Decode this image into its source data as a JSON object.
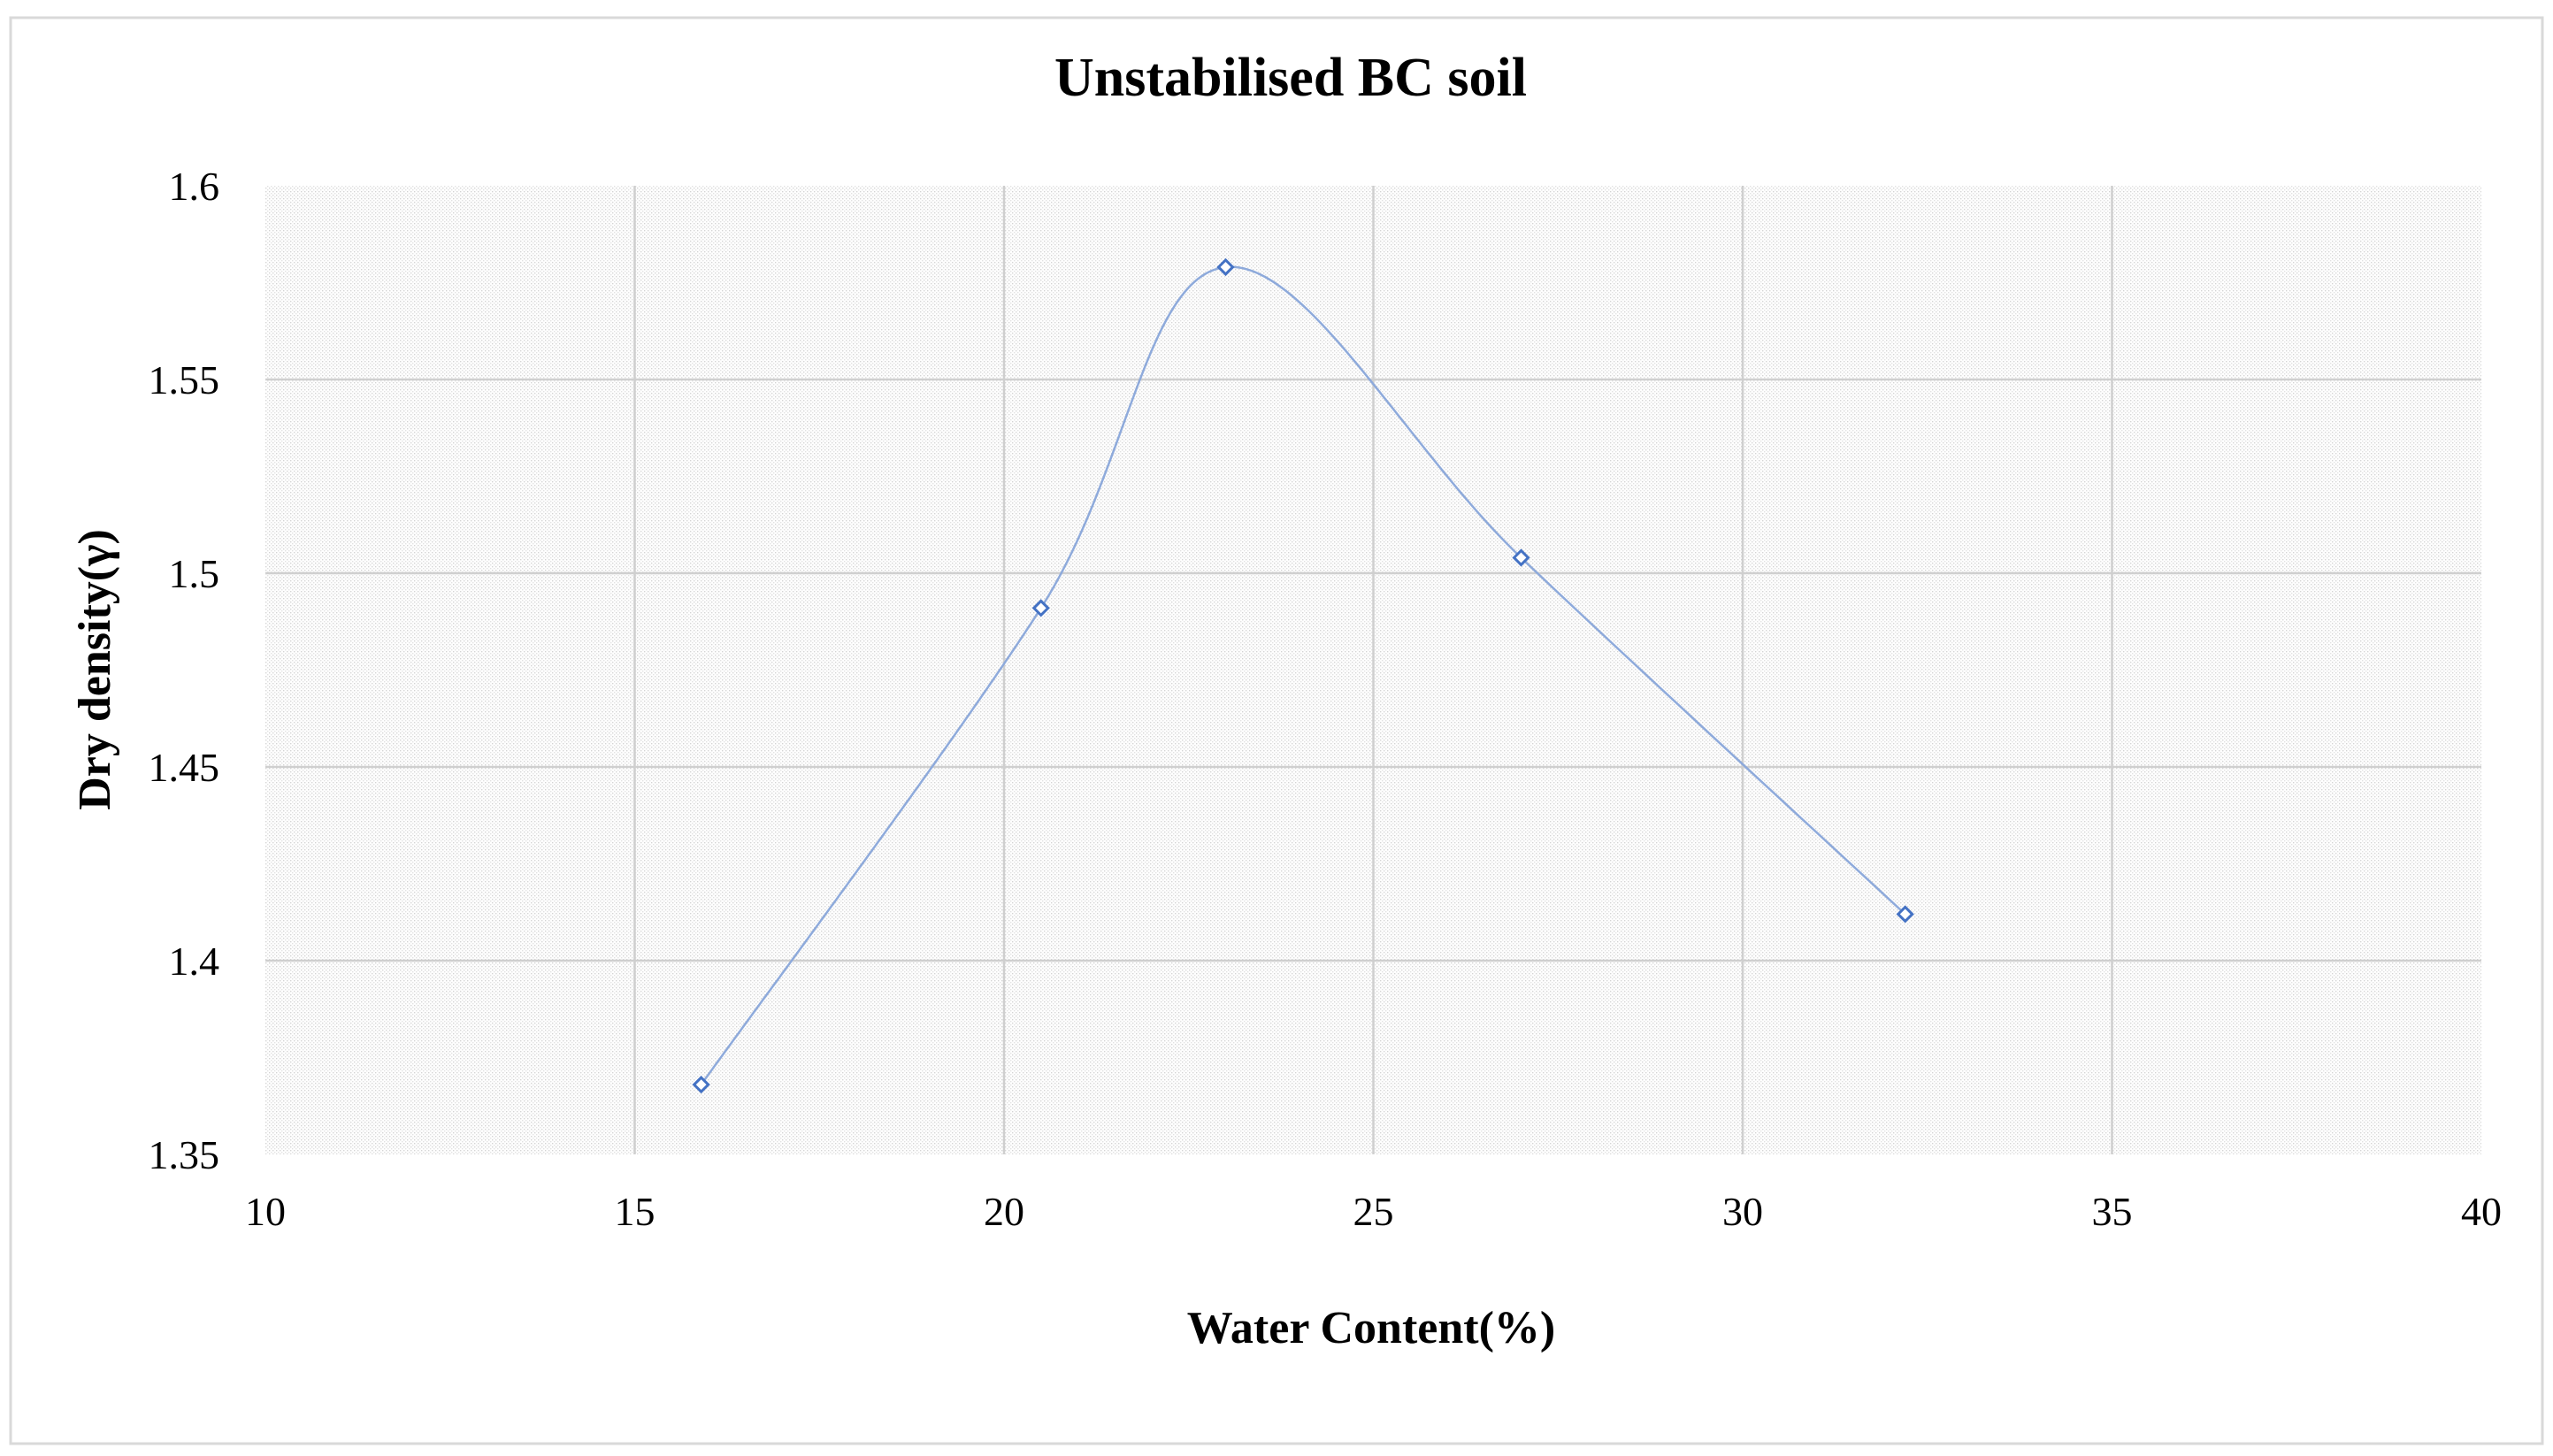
{
  "chart_data": {
    "type": "line",
    "title": "Unstabilised BC soil",
    "xlabel": "Water Content(%)",
    "ylabel": "Dry  density(γ)",
    "xlim": [
      10,
      40
    ],
    "ylim": [
      1.35,
      1.6
    ],
    "x_ticks": [
      10,
      15,
      20,
      25,
      30,
      35,
      40
    ],
    "y_ticks": [
      1.35,
      1.4,
      1.45,
      1.5,
      1.55,
      1.6
    ],
    "x_tick_labels": [
      "10",
      "15",
      "20",
      "25",
      "30",
      "35",
      "40"
    ],
    "y_tick_labels": [
      "1.35",
      "1.4",
      "1.45",
      "1.5",
      "1.55",
      "1.6"
    ],
    "grid": true,
    "smooth": true,
    "series": [
      {
        "name": "Unstabilised BC soil",
        "color": "#4472C4",
        "marker": "diamond",
        "x": [
          15.9,
          20.5,
          23.0,
          27.0,
          32.2
        ],
        "y": [
          1.368,
          1.491,
          1.579,
          1.504,
          1.412
        ]
      }
    ]
  }
}
